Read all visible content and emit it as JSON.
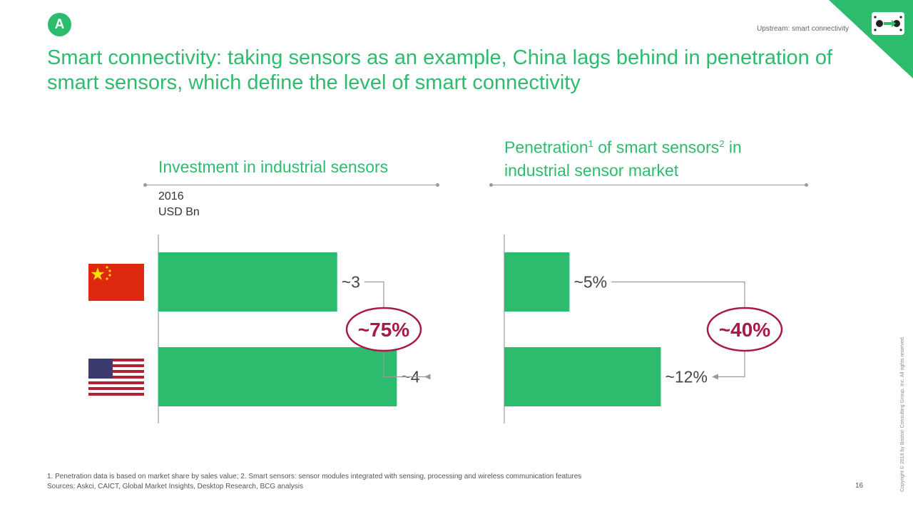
{
  "badge": "A",
  "section_label": "Upstream: smart connectivity",
  "title": "Smart connectivity: taking sensors as an example, China lags behind in penetration of smart sensors, which define the level of smart connectivity",
  "colors": {
    "accent": "#2dbb6e",
    "highlight": "#a6194b",
    "connector": "#9a9a9a"
  },
  "chart_data": [
    {
      "type": "bar",
      "orientation": "horizontal",
      "title": "Investment in industrial sensors",
      "unit_lines": [
        "2016",
        "USD Bn"
      ],
      "categories": [
        "China",
        "USA"
      ],
      "values": [
        3,
        4
      ],
      "value_labels": [
        "~3",
        "~4"
      ],
      "xlim": [
        0,
        6.7
      ],
      "difference_label": "~75%"
    },
    {
      "type": "bar",
      "orientation": "horizontal",
      "title_parts": [
        "Penetration",
        "1",
        " of smart sensors",
        "2",
        " in",
        "industrial sensor market"
      ],
      "categories": [
        "China",
        "USA"
      ],
      "values": [
        5,
        12
      ],
      "value_labels": [
        "~5%",
        "~12%"
      ],
      "xlim": [
        0,
        25.7
      ],
      "difference_label": "~40%"
    }
  ],
  "footnote_line1": "1. Penetration data is based on market share by sales value; 2. Smart sensors: sensor modules integrated with sensing, processing and wireless communication features",
  "footnote_line2": "Sources: Askci, CAICT, Global Market Insights, Desktop Research, BCG analysis",
  "page_number": "16",
  "copyright": "Copyright © 2019 by Boston Consulting Group. Inc. All rights reserved."
}
